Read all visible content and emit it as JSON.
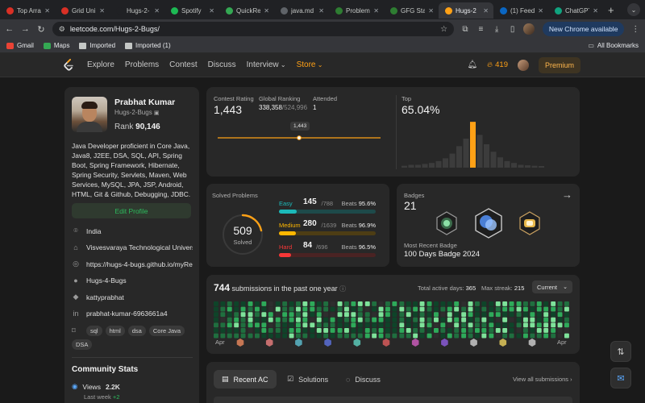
{
  "browser": {
    "tabs": [
      {
        "title": "Top Arra",
        "color": "#d93025",
        "glyph": "G",
        "active": false
      },
      {
        "title": "Grid Uni",
        "color": "#d93025",
        "glyph": "G",
        "active": false
      },
      {
        "title": "Hugs-2-",
        "color": "#202124",
        "glyph": "●",
        "active": false
      },
      {
        "title": "Spotify",
        "color": "#1db954",
        "glyph": "●",
        "active": false
      },
      {
        "title": "QuickRe",
        "color": "#34a853",
        "glyph": "Q",
        "active": false
      },
      {
        "title": "java.md",
        "color": "#5f6368",
        "glyph": "●",
        "active": false
      },
      {
        "title": "Problem",
        "color": "#2e7d32",
        "glyph": "G",
        "active": false
      },
      {
        "title": "GFG Sta",
        "color": "#2e7d32",
        "glyph": "G",
        "active": false
      },
      {
        "title": "Hugs-2",
        "color": "#ffa116",
        "glyph": "L",
        "active": true
      },
      {
        "title": "(1) Feed",
        "color": "#0a66c2",
        "glyph": "in",
        "active": false
      },
      {
        "title": "ChatGPT",
        "color": "#10a37f",
        "glyph": "●",
        "active": false
      }
    ],
    "url": "leetcode.com/Hugs-2-Bugs/",
    "new_chrome_label": "New Chrome available",
    "bookmarks": [
      {
        "label": "Gmail",
        "color": "#ea4335"
      },
      {
        "label": "Maps",
        "color": "#34a853"
      },
      {
        "label": "Imported",
        "color": "#c4c7c5"
      },
      {
        "label": "Imported (1)",
        "color": "#c4c7c5"
      }
    ],
    "all_bookmarks_label": "All Bookmarks"
  },
  "nav": {
    "links": [
      "Explore",
      "Problems",
      "Contest",
      "Discuss",
      "Interview",
      "Store"
    ],
    "streak": "419",
    "premium_label": "Premium"
  },
  "profile": {
    "name": "Prabhat Kumar",
    "username": "Hugs-2-Bugs",
    "rank_label": "Rank",
    "rank_value": "90,146",
    "bio": "Java Developer proficient in Core Java, Java8, J2EE, DSA, SQL, API, Spring Boot, Spring Framework, Hibernate, Spring Security, Servlets, Maven, Web Services, MySQL, JPA, JSP, Android, HTML, Git & Github, Debugging, JDBC.",
    "edit_label": "Edit Profile",
    "location": "India",
    "school": "Visvesvaraya Technological Univers...",
    "website": "https://hugs-4-bugs.github.io/myRe...",
    "github": "Hugs-4-Bugs",
    "twitter": "kattyprabhat",
    "linkedin": "prabhat-kumar-6963661a4",
    "tags": [
      "sql",
      "html",
      "dsa",
      "Core Java",
      "DSA"
    ]
  },
  "community": {
    "title": "Community Stats",
    "views_label": "Views",
    "views_value": "2.2K",
    "last_week_label": "Last week",
    "last_week_value": "+2"
  },
  "contest": {
    "rating_label": "Contest Rating",
    "rating_value": "1,443",
    "global_label": "Global Ranking",
    "global_value": "338,358",
    "global_total": "/524,996",
    "attended_label": "Attended",
    "attended_value": "1",
    "tooltip": "1,443",
    "top_label": "Top",
    "top_value": "65.04%",
    "histogram": [
      0.04,
      0.06,
      0.06,
      0.08,
      0.1,
      0.14,
      0.2,
      0.3,
      0.46,
      0.62,
      0.98,
      0.7,
      0.5,
      0.34,
      0.22,
      0.14,
      0.1,
      0.06,
      0.05,
      0.04,
      0.03
    ],
    "highlight_index": 10
  },
  "solved": {
    "label": "Solved Problems",
    "total": "509",
    "total_label": "Solved",
    "beats_label": "Beats",
    "rows": [
      {
        "name": "Easy",
        "count": "145",
        "total": "/788",
        "beats": "95.6%",
        "color": "#1cbaba",
        "track": "#1e4a4a",
        "frac": 0.184
      },
      {
        "name": "Medium",
        "count": "280",
        "total": "/1639",
        "beats": "96.9%",
        "color": "#ffb700",
        "track": "#4d3d14",
        "frac": 0.171
      },
      {
        "name": "Hard",
        "count": "84",
        "total": "/696",
        "beats": "96.5%",
        "color": "#f63737",
        "track": "#4a2323",
        "frac": 0.121
      }
    ]
  },
  "badges": {
    "label": "Badges",
    "count": "21",
    "recent_label": "Most Recent Badge",
    "recent_name": "100 Days Badge 2024"
  },
  "calendar": {
    "count": "744",
    "count_label": "submissions in the past one year",
    "active_label": "Total active days:",
    "active_value": "365",
    "streak_label": "Max streak:",
    "streak_value": "215",
    "select_label": "Current",
    "month_start": "Apr",
    "month_end": "Apr"
  },
  "recent": {
    "tabs": [
      "Recent AC",
      "Solutions",
      "Discuss"
    ],
    "view_all": "View all submissions"
  }
}
